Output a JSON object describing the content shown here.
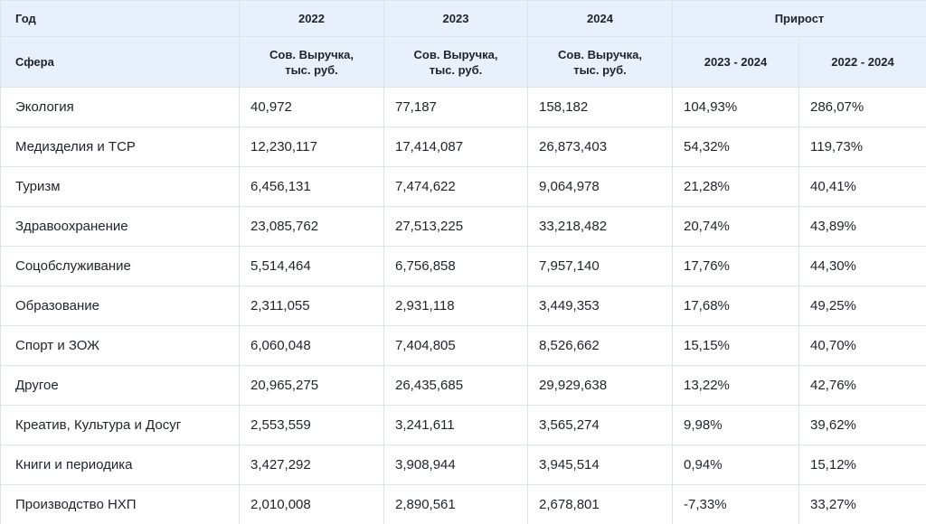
{
  "header": {
    "year_label": "Год",
    "years": [
      "2022",
      "2023",
      "2024"
    ],
    "growth_label": "Прирост",
    "sector_label": "Сфера",
    "revenue_line1": "Сов. Выручка,",
    "revenue_line2": "тыс. руб.",
    "growth_periods": [
      "2023 - 2024",
      "2022 - 2024"
    ]
  },
  "rows": [
    [
      "Экология",
      "40,972",
      "77,187",
      "158,182",
      "104,93%",
      "286,07%"
    ],
    [
      "Медизделия и ТСР",
      "12,230,117",
      "17,414,087",
      "26,873,403",
      "54,32%",
      "119,73%"
    ],
    [
      "Туризм",
      "6,456,131",
      "7,474,622",
      "9,064,978",
      "21,28%",
      "40,41%"
    ],
    [
      "Здравоохранение",
      "23,085,762",
      "27,513,225",
      "33,218,482",
      "20,74%",
      "43,89%"
    ],
    [
      "Соцобслуживание",
      "5,514,464",
      "6,756,858",
      "7,957,140",
      "17,76%",
      "44,30%"
    ],
    [
      "Образование",
      "2,311,055",
      "2,931,118",
      "3,449,353",
      "17,68%",
      "49,25%"
    ],
    [
      "Спорт и ЗОЖ",
      "6,060,048",
      "7,404,805",
      "8,526,662",
      "15,15%",
      "40,70%"
    ],
    [
      "Другое",
      "20,965,275",
      "26,435,685",
      "29,929,638",
      "13,22%",
      "42,76%"
    ],
    [
      "Креатив, Культура и Досуг",
      "2,553,559",
      "3,241,611",
      "3,565,274",
      "9,98%",
      "39,62%"
    ],
    [
      "Книги и периодика",
      "3,427,292",
      "3,908,944",
      "3,945,514",
      "0,94%",
      "15,12%"
    ],
    [
      "Производство НХП",
      "2,010,008",
      "2,890,561",
      "2,678,801",
      "-7,33%",
      "33,27%"
    ]
  ]
}
